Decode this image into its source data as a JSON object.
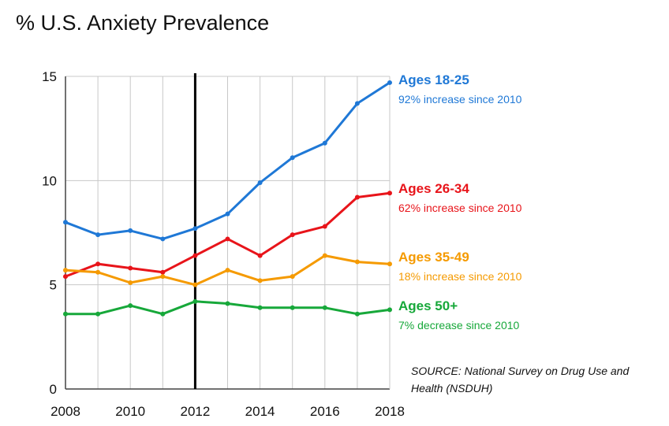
{
  "chart_data": {
    "type": "line",
    "title": "% U.S. Anxiety Prevalence",
    "xlabel": "",
    "ylabel": "",
    "x": [
      2008,
      2009,
      2010,
      2011,
      2012,
      2013,
      2014,
      2015,
      2016,
      2017,
      2018
    ],
    "xticks": [
      "2008",
      "2010",
      "2012",
      "2014",
      "2016",
      "2018"
    ],
    "yticks": [
      "0",
      "5",
      "10",
      "15"
    ],
    "xlim": [
      2008,
      2018
    ],
    "ylim": [
      0,
      15
    ],
    "grid": true,
    "reference_line_x": 2012,
    "series": [
      {
        "name": "Ages 18-25",
        "note": "92% increase since 2010",
        "color": "#1f78d6",
        "values": [
          8.0,
          7.4,
          7.6,
          7.2,
          7.7,
          8.4,
          9.9,
          11.1,
          11.8,
          13.7,
          14.7
        ]
      },
      {
        "name": "Ages 26-34",
        "note": "62% increase since 2010",
        "color": "#e8141a",
        "values": [
          5.4,
          6.0,
          5.8,
          5.6,
          6.4,
          7.2,
          6.4,
          7.4,
          7.8,
          9.2,
          9.4
        ]
      },
      {
        "name": "Ages 35-49",
        "note": "18% increase since 2010",
        "color": "#f59a00",
        "values": [
          5.7,
          5.6,
          5.1,
          5.4,
          5.0,
          5.7,
          5.2,
          5.4,
          6.4,
          6.1,
          6.0
        ]
      },
      {
        "name": "Ages 50+",
        "note": "7% decrease since 2010",
        "color": "#17a83a",
        "values": [
          3.6,
          3.6,
          4.0,
          3.6,
          4.2,
          4.1,
          3.9,
          3.9,
          3.9,
          3.6,
          3.8
        ]
      }
    ]
  },
  "source_line1": "SOURCE: National Survey on Drug Use and",
  "source_line2": "Health (NSDUH)"
}
